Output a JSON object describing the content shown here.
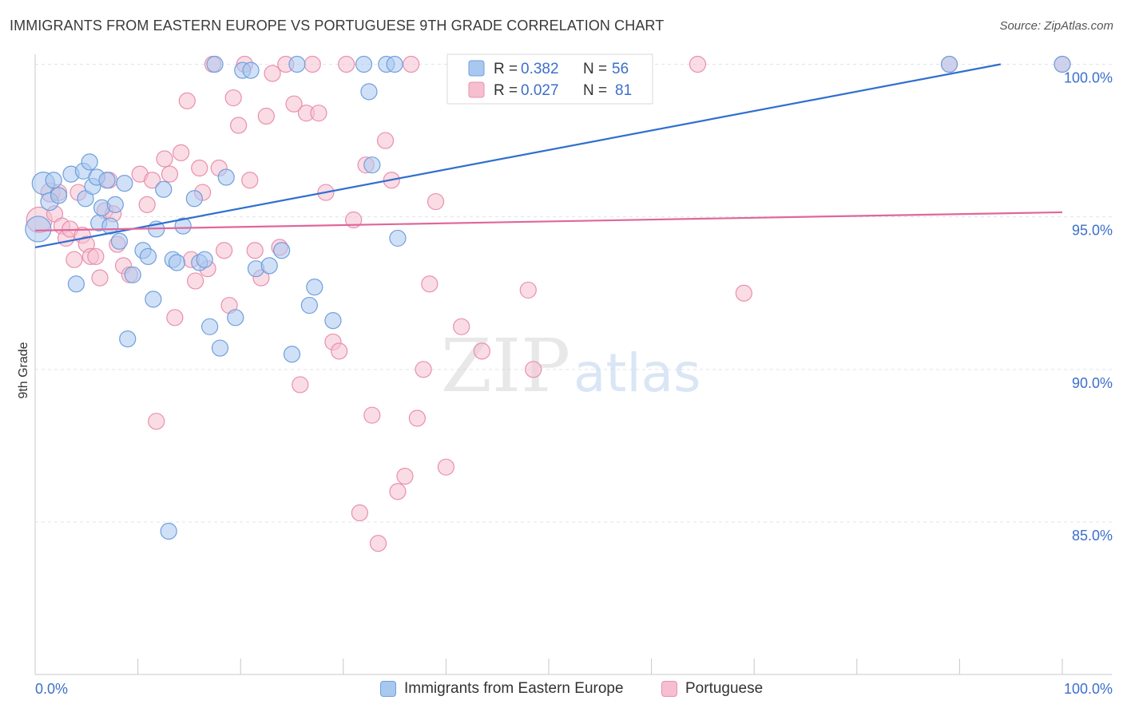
{
  "header": {
    "title": "IMMIGRANTS FROM EASTERN EUROPE VS PORTUGUESE 9TH GRADE CORRELATION CHART",
    "source": "Source: ZipAtlas.com"
  },
  "watermark": {
    "zip": "ZIP",
    "atlas": "atlas"
  },
  "colors": {
    "blue_fill": "#a9c8f0",
    "blue_stroke": "#6f9fdc",
    "blue_line": "#2f6fd0",
    "pink_fill": "#f6bfd0",
    "pink_stroke": "#e98fae",
    "pink_line": "#e0679a",
    "axis_text": "#3d6fc9",
    "grid": "#dfe3ea"
  },
  "chart_data": {
    "type": "scatter",
    "title": "IMMIGRANTS FROM EASTERN EUROPE VS PORTUGUESE 9TH GRADE CORRELATION CHART",
    "xlabel": "",
    "ylabel": "9th Grade",
    "xlim": [
      0,
      100
    ],
    "ylim": [
      80.5,
      100.7
    ],
    "x_tick_labels": [
      "0.0%",
      "100.0%"
    ],
    "y_ticks": [
      {
        "value": 100,
        "label": "100.0%"
      },
      {
        "value": 95,
        "label": "95.0%"
      },
      {
        "value": 90,
        "label": "90.0%"
      },
      {
        "value": 85,
        "label": "85.0%"
      }
    ],
    "grid": true,
    "legend_position": "top-center",
    "stats": [
      {
        "r_label": "R =",
        "r": "0.382",
        "n_label": "N =",
        "n": "56"
      },
      {
        "r_label": "R =",
        "r": "0.027",
        "n_label": "N =",
        "n": "81"
      }
    ],
    "series": [
      {
        "name": "Immigrants from Eastern Europe",
        "trend": [
          [
            0,
            94.0
          ],
          [
            94,
            100.0
          ]
        ],
        "points": [
          [
            0.3,
            94.6,
            16
          ],
          [
            0.8,
            96.1,
            14
          ],
          [
            1.4,
            95.5,
            11
          ],
          [
            1.8,
            96.2,
            10
          ],
          [
            2.3,
            95.7,
            10
          ],
          [
            3.5,
            96.4,
            10
          ],
          [
            4.0,
            92.8,
            10
          ],
          [
            4.7,
            96.5,
            10
          ],
          [
            4.9,
            95.6,
            10
          ],
          [
            5.3,
            96.8,
            10
          ],
          [
            5.6,
            96.0,
            10
          ],
          [
            6.0,
            96.3,
            10
          ],
          [
            6.2,
            94.8,
            10
          ],
          [
            6.5,
            95.3,
            10
          ],
          [
            7.0,
            96.2,
            10
          ],
          [
            7.3,
            94.7,
            10
          ],
          [
            7.8,
            95.4,
            10
          ],
          [
            8.2,
            94.2,
            10
          ],
          [
            8.7,
            96.1,
            10
          ],
          [
            9.0,
            91.0,
            10
          ],
          [
            9.5,
            93.1,
            10
          ],
          [
            10.5,
            93.9,
            10
          ],
          [
            11.0,
            93.7,
            10
          ],
          [
            11.5,
            92.3,
            10
          ],
          [
            11.8,
            94.6,
            10
          ],
          [
            12.5,
            95.9,
            10
          ],
          [
            13.0,
            84.7,
            10
          ],
          [
            13.4,
            93.6,
            10
          ],
          [
            13.8,
            93.5,
            10
          ],
          [
            14.4,
            94.7,
            10
          ],
          [
            15.5,
            95.6,
            10
          ],
          [
            16.0,
            93.5,
            10
          ],
          [
            16.5,
            93.6,
            10
          ],
          [
            17.0,
            91.4,
            10
          ],
          [
            17.5,
            100,
            10
          ],
          [
            18.0,
            90.7,
            10
          ],
          [
            18.6,
            96.3,
            10
          ],
          [
            19.5,
            91.7,
            10
          ],
          [
            20.2,
            99.8,
            10
          ],
          [
            21.0,
            99.8,
            10
          ],
          [
            21.5,
            93.3,
            10
          ],
          [
            22.8,
            93.4,
            10
          ],
          [
            24.0,
            93.9,
            10
          ],
          [
            25.5,
            100,
            10
          ],
          [
            25.0,
            90.5,
            10
          ],
          [
            26.7,
            92.1,
            10
          ],
          [
            27.2,
            92.7,
            10
          ],
          [
            29.0,
            91.6,
            10
          ],
          [
            32.0,
            100,
            10
          ],
          [
            32.5,
            99.1,
            10
          ],
          [
            32.8,
            96.7,
            10
          ],
          [
            34.2,
            100,
            10
          ],
          [
            35.0,
            100,
            10
          ],
          [
            35.3,
            94.3,
            10
          ],
          [
            89.0,
            100,
            10
          ],
          [
            100,
            100,
            10
          ]
        ]
      },
      {
        "name": "Portuguese",
        "trend": [
          [
            0,
            94.55
          ],
          [
            100,
            95.15
          ]
        ],
        "points": [
          [
            0.4,
            94.9,
            16
          ],
          [
            1.5,
            95.8,
            12
          ],
          [
            1.9,
            95.1,
            10
          ],
          [
            2.3,
            95.8,
            10
          ],
          [
            2.6,
            94.7,
            10
          ],
          [
            3.0,
            94.3,
            10
          ],
          [
            3.4,
            94.6,
            10
          ],
          [
            3.8,
            93.6,
            10
          ],
          [
            4.2,
            95.8,
            10
          ],
          [
            4.6,
            94.4,
            10
          ],
          [
            5.0,
            94.1,
            10
          ],
          [
            5.4,
            93.7,
            10
          ],
          [
            5.9,
            93.7,
            10
          ],
          [
            6.3,
            93.0,
            10
          ],
          [
            6.8,
            95.2,
            10
          ],
          [
            7.2,
            96.2,
            10
          ],
          [
            7.6,
            95.1,
            10
          ],
          [
            8.0,
            94.1,
            10
          ],
          [
            8.6,
            93.4,
            10
          ],
          [
            9.2,
            93.1,
            10
          ],
          [
            10.2,
            96.4,
            10
          ],
          [
            10.9,
            95.4,
            10
          ],
          [
            11.4,
            96.2,
            10
          ],
          [
            11.8,
            88.3,
            10
          ],
          [
            12.6,
            96.9,
            10
          ],
          [
            13.1,
            96.4,
            10
          ],
          [
            13.6,
            91.7,
            10
          ],
          [
            14.2,
            97.1,
            10
          ],
          [
            14.8,
            98.8,
            10
          ],
          [
            15.2,
            93.6,
            10
          ],
          [
            15.6,
            92.9,
            10
          ],
          [
            16.0,
            96.6,
            10
          ],
          [
            16.3,
            95.8,
            10
          ],
          [
            16.8,
            93.3,
            10
          ],
          [
            17.3,
            100,
            10
          ],
          [
            17.9,
            96.6,
            10
          ],
          [
            18.4,
            93.9,
            10
          ],
          [
            18.9,
            92.1,
            10
          ],
          [
            19.3,
            98.9,
            10
          ],
          [
            19.8,
            98.0,
            10
          ],
          [
            20.4,
            100,
            10
          ],
          [
            20.9,
            96.2,
            10
          ],
          [
            21.4,
            93.9,
            10
          ],
          [
            22.0,
            93.0,
            10
          ],
          [
            22.5,
            98.3,
            10
          ],
          [
            23.1,
            99.7,
            10
          ],
          [
            23.8,
            94.0,
            10
          ],
          [
            24.4,
            100,
            10
          ],
          [
            25.2,
            98.7,
            10
          ],
          [
            25.8,
            89.5,
            10
          ],
          [
            26.4,
            98.4,
            10
          ],
          [
            27.0,
            100,
            10
          ],
          [
            27.6,
            98.4,
            10
          ],
          [
            28.3,
            95.8,
            10
          ],
          [
            29.0,
            90.9,
            10
          ],
          [
            29.6,
            90.6,
            10
          ],
          [
            30.3,
            100,
            10
          ],
          [
            31.0,
            94.9,
            10
          ],
          [
            31.6,
            85.3,
            10
          ],
          [
            32.2,
            96.7,
            10
          ],
          [
            32.8,
            88.5,
            10
          ],
          [
            33.4,
            84.3,
            10
          ],
          [
            34.1,
            97.5,
            10
          ],
          [
            34.7,
            96.2,
            10
          ],
          [
            35.3,
            86.0,
            10
          ],
          [
            36.0,
            86.5,
            10
          ],
          [
            36.6,
            100,
            10
          ],
          [
            37.2,
            88.4,
            10
          ],
          [
            37.8,
            90.0,
            10
          ],
          [
            38.4,
            92.8,
            10
          ],
          [
            39.0,
            95.5,
            10
          ],
          [
            40.0,
            86.8,
            10
          ],
          [
            41.5,
            91.4,
            10
          ],
          [
            43.5,
            90.6,
            10
          ],
          [
            45.0,
            100,
            10
          ],
          [
            48.0,
            92.6,
            10
          ],
          [
            48.5,
            90.0,
            10
          ],
          [
            64.5,
            100,
            10
          ],
          [
            69.0,
            92.5,
            10
          ],
          [
            89.0,
            100,
            10
          ],
          [
            100,
            100,
            10
          ]
        ]
      }
    ]
  }
}
